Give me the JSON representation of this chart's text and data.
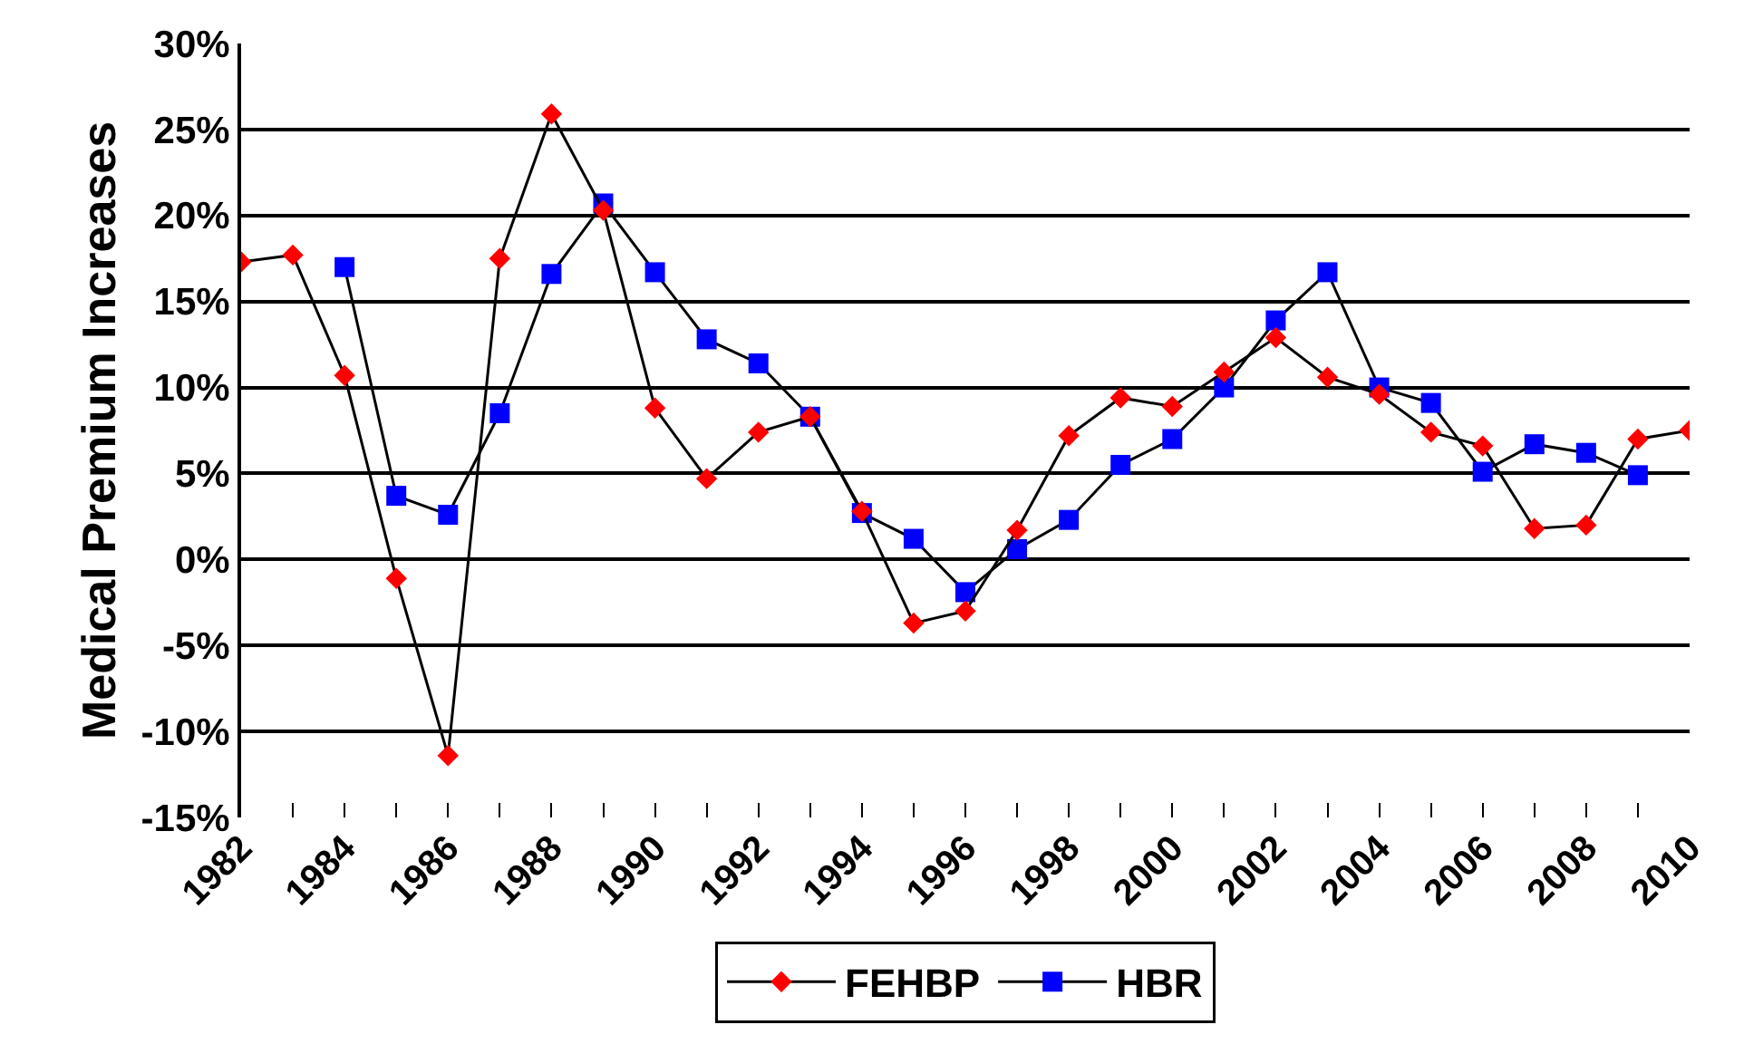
{
  "chart_data": {
    "type": "line",
    "ylabel": "Medical Premium Increases",
    "x": [
      1982,
      1983,
      1984,
      1985,
      1986,
      1987,
      1988,
      1989,
      1990,
      1991,
      1992,
      1993,
      1994,
      1995,
      1996,
      1997,
      1998,
      1999,
      2000,
      2001,
      2002,
      2003,
      2004,
      2005,
      2006,
      2007,
      2008,
      2009,
      2010
    ],
    "series": [
      {
        "name": "FEHBP",
        "color": "#ff0000",
        "marker": "diamond",
        "values": [
          17.3,
          17.7,
          10.7,
          -1.1,
          -11.4,
          17.5,
          25.9,
          20.3,
          8.8,
          4.7,
          7.4,
          8.3,
          2.8,
          -3.7,
          -3.0,
          1.7,
          7.2,
          9.4,
          8.9,
          10.9,
          12.9,
          10.6,
          9.6,
          7.4,
          6.6,
          1.8,
          2.0,
          7.0,
          7.5
        ]
      },
      {
        "name": "HBR",
        "color": "#0000ff",
        "marker": "square",
        "values": [
          null,
          null,
          17.0,
          3.7,
          2.6,
          8.5,
          16.6,
          20.7,
          16.7,
          12.8,
          11.4,
          8.3,
          2.7,
          1.2,
          -1.9,
          0.6,
          2.3,
          5.5,
          7.0,
          10.0,
          13.9,
          16.7,
          10.0,
          9.1,
          5.1,
          6.7,
          6.2,
          4.9,
          null
        ]
      }
    ],
    "xlim": [
      1982,
      2010
    ],
    "xticks": [
      1982,
      {
        "value": 1983,
        "label": null
      },
      1984,
      {
        "value": 1985,
        "label": null
      },
      1986,
      {
        "value": 1987,
        "label": null
      },
      1988,
      {
        "value": 1989,
        "label": null
      },
      1990,
      {
        "value": 1991,
        "label": null
      },
      1992,
      {
        "value": 1993,
        "label": null
      },
      1994,
      {
        "value": 1995,
        "label": null
      },
      1996,
      {
        "value": 1997,
        "label": null
      },
      1998,
      {
        "value": 1999,
        "label": null
      },
      2000,
      {
        "value": 2001,
        "label": null
      },
      2002,
      {
        "value": 2003,
        "label": null
      },
      2004,
      {
        "value": 2005,
        "label": null
      },
      2006,
      {
        "value": 2007,
        "label": null
      },
      2008,
      {
        "value": 2009,
        "label": null
      },
      2010
    ],
    "ylim": [
      -15,
      30
    ],
    "yticks": [
      {
        "value": -15,
        "label": "-15%"
      },
      {
        "value": -10,
        "label": "-10%"
      },
      {
        "value": -5,
        "label": "-5%"
      },
      {
        "value": 0,
        "label": "0%"
      },
      {
        "value": 5,
        "label": "5%"
      },
      {
        "value": 10,
        "label": "10%"
      },
      {
        "value": 15,
        "label": "15%"
      },
      {
        "value": 20,
        "label": "20%"
      },
      {
        "value": 25,
        "label": "25%"
      },
      {
        "value": 30,
        "label": "30%"
      }
    ],
    "grid": "y",
    "legend": "bottom",
    "line_style": "solid"
  }
}
